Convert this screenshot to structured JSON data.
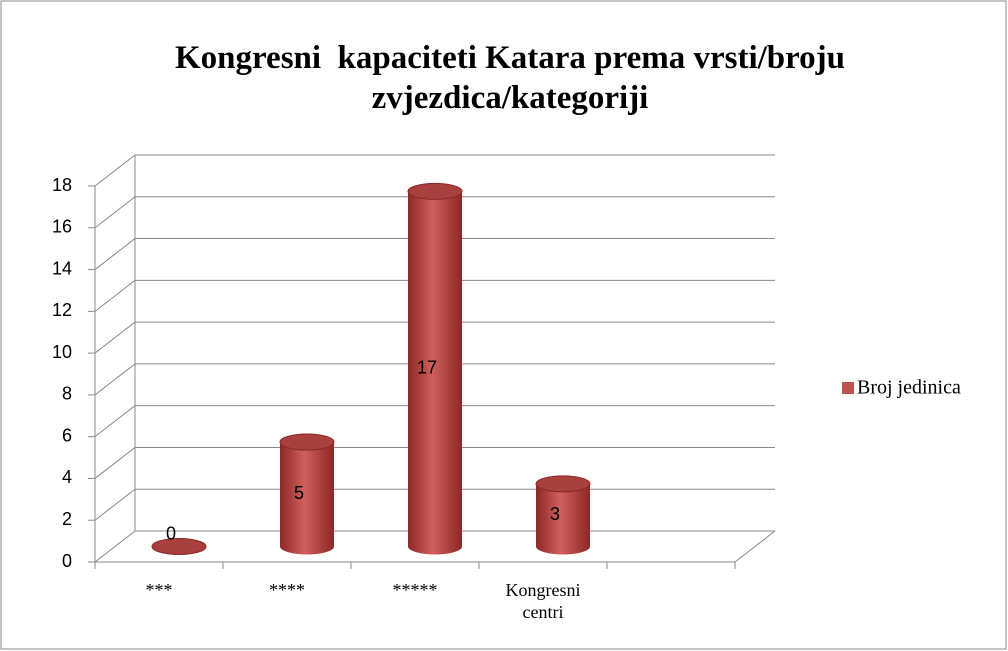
{
  "chart_data": {
    "type": "bar3d",
    "title": "Kongresni  kapaciteti Katara prema vrsti/broju zvjezdica/kategoriji",
    "categories": [
      "***",
      "****",
      "*****",
      "Kongresni centri",
      null
    ],
    "series": [
      {
        "name": "Broj jedinica",
        "color": "#c0504d",
        "values": [
          0,
          5,
          17,
          3,
          null
        ]
      }
    ],
    "ylim": [
      0,
      18
    ],
    "yticks": [
      0,
      2,
      4,
      6,
      8,
      10,
      12,
      14,
      16,
      18
    ],
    "grid": true,
    "legend": "right",
    "data_labels": true
  }
}
